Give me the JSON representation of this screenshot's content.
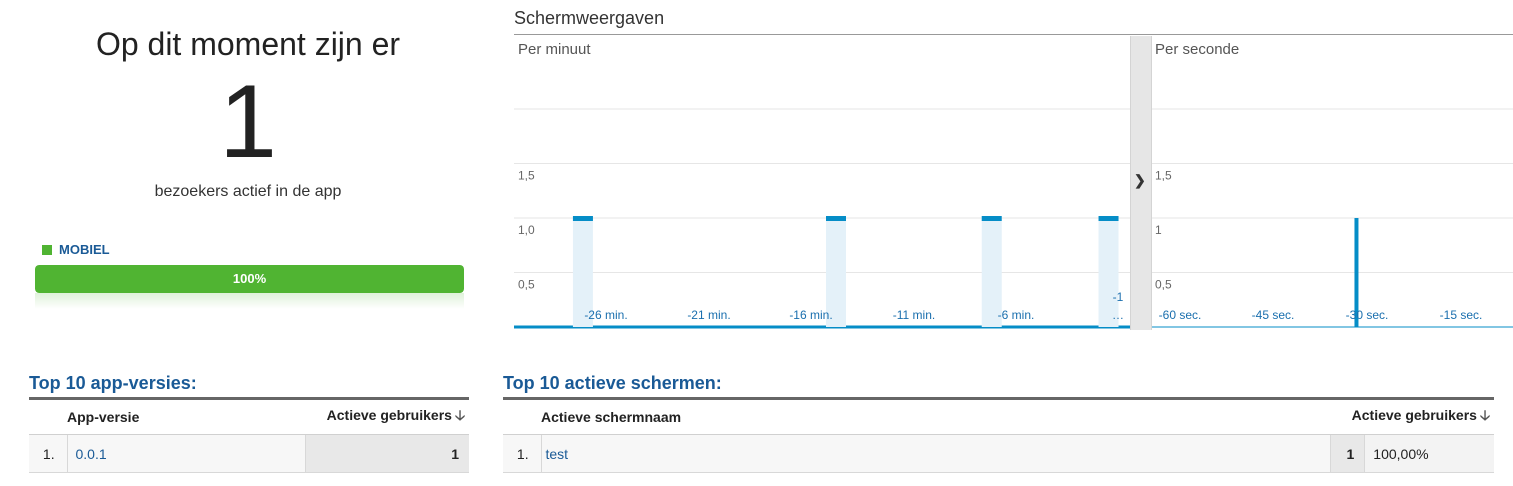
{
  "summary": {
    "headline": "Op dit moment zijn er",
    "active_count": "1",
    "subtext": "bezoekers actief in de app",
    "segment_label": "MOBIEL",
    "segment_percent_label": "100%",
    "segment_fraction": 1.0,
    "segment_color": "#50b432"
  },
  "chart_title": "Schermweergaven",
  "chart_data": [
    {
      "type": "bar",
      "title": "Per minuut",
      "x_tick_labels": [
        "-26 min.",
        "-21 min.",
        "-16 min.",
        "-11 min.",
        "-6 min.",
        "-1 …"
      ],
      "y_tick_labels": [
        "0,5",
        "1,0",
        "1,5"
      ],
      "x": [
        -28,
        -15,
        -7,
        -1
      ],
      "values": [
        1,
        1,
        1,
        1
      ],
      "xlim": [
        -30,
        0
      ],
      "ylim": [
        0,
        2
      ],
      "grid": true,
      "bar_color": "#058dc7"
    },
    {
      "type": "bar",
      "title": "Per seconde",
      "x_tick_labels": [
        "-60 sec.",
        "-45 sec.",
        "-30 sec.",
        "-15 sec."
      ],
      "y_tick_labels": [
        "0,5",
        "1",
        "1,5"
      ],
      "x": [
        -26
      ],
      "values": [
        1
      ],
      "xlim": [
        -60,
        0
      ],
      "ylim": [
        0,
        2
      ],
      "grid": true,
      "bar_color": "#058dc7"
    }
  ],
  "table_app_versions": {
    "title": "Top 10 app-versies:",
    "col_name": "App-versie",
    "col_value": "Actieve gebruikers",
    "rows": [
      {
        "rank": "1.",
        "name": "0.0.1",
        "value": "1"
      }
    ]
  },
  "table_screens": {
    "title": "Top 10 actieve schermen:",
    "col_name": "Actieve schermnaam",
    "col_value": "Actieve gebruikers",
    "rows": [
      {
        "rank": "1.",
        "name": "test",
        "value": "1",
        "percent": "100,00%"
      }
    ]
  },
  "icons": {
    "sort": "arrow-down-icon",
    "expand": "chevron-right-icon"
  }
}
